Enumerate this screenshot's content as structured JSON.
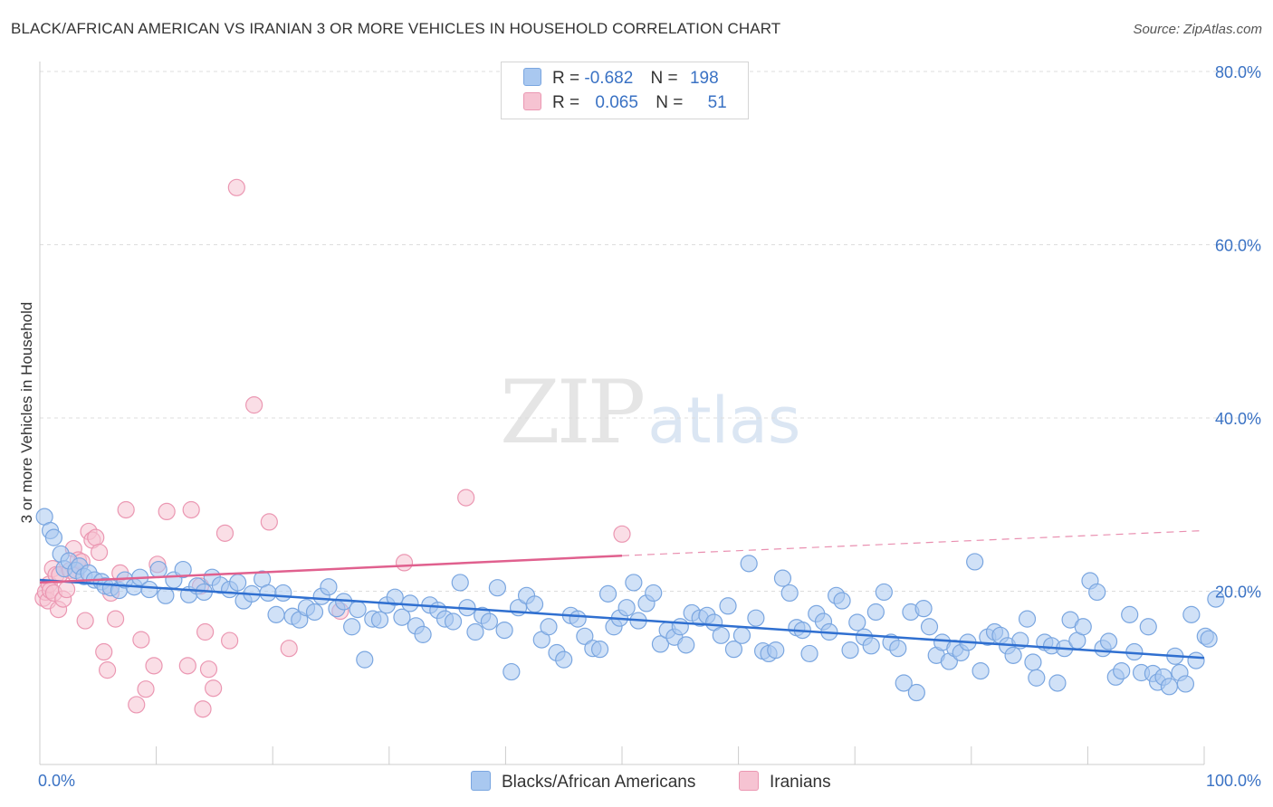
{
  "title": "BLACK/AFRICAN AMERICAN VS IRANIAN 3 OR MORE VEHICLES IN HOUSEHOLD CORRELATION CHART",
  "source": "Source: ZipAtlas.com",
  "watermark": {
    "zip": "ZIP",
    "atlas": "atlas"
  },
  "legend": {
    "rows": [
      {
        "r_label": "R =",
        "r_value": "-0.682",
        "n_label": "N =",
        "n_value": "198"
      },
      {
        "r_label": "R =",
        "r_value": "0.065",
        "n_label": "N =",
        "n_value": "51"
      }
    ]
  },
  "bottom_legend": {
    "series1": "Blacks/African Americans",
    "series2": "Iranians"
  },
  "colors": {
    "blue_fill": "#a9c8f0",
    "blue_stroke": "#7aa6e0",
    "blue_line": "#2f6fd0",
    "pink_fill": "#f6c3d2",
    "pink_stroke": "#eb97b2",
    "pink_line": "#e0608e",
    "axis_text": "#3a72c4",
    "grid": "#dddddd"
  },
  "chart_data": {
    "type": "scatter",
    "ylabel": "3 or more Vehicles in Household",
    "xlim": [
      0,
      100
    ],
    "ylim": [
      0,
      85
    ],
    "x_tick_labels": [
      "0.0%",
      "100.0%"
    ],
    "y_ticks": [
      20,
      40,
      60,
      80
    ],
    "y_tick_labels": [
      "20.0%",
      "40.0%",
      "60.0%",
      "80.0%"
    ],
    "grid": true,
    "series": [
      {
        "name": "Blacks/African Americans",
        "r": -0.682,
        "n": 198,
        "trend": {
          "x": [
            0,
            100
          ],
          "y": [
            21.3,
            12.3
          ],
          "style": "solid"
        },
        "points": [
          [
            0.4,
            28.6
          ],
          [
            0.9,
            27
          ],
          [
            1.2,
            26.2
          ],
          [
            1.8,
            24.3
          ],
          [
            2.1,
            22.6
          ],
          [
            2.5,
            23.5
          ],
          [
            3.1,
            22.4
          ],
          [
            3.4,
            22.9
          ],
          [
            3.8,
            21.7
          ],
          [
            4.2,
            22.1
          ],
          [
            4.7,
            21.3
          ],
          [
            5.3,
            21.1
          ],
          [
            5.6,
            20.6
          ],
          [
            6.1,
            20.4
          ],
          [
            6.8,
            20.1
          ],
          [
            7.3,
            21.3
          ],
          [
            8.1,
            20.5
          ],
          [
            8.6,
            21.6
          ],
          [
            9.4,
            20.2
          ],
          [
            10.2,
            22.5
          ],
          [
            10.8,
            19.5
          ],
          [
            11.5,
            21.3
          ],
          [
            12.3,
            22.5
          ],
          [
            12.8,
            19.6
          ],
          [
            13.5,
            20.6
          ],
          [
            14.1,
            19.9
          ],
          [
            14.8,
            21.6
          ],
          [
            15.5,
            20.7
          ],
          [
            16.3,
            20.2
          ],
          [
            17,
            21
          ],
          [
            17.5,
            18.9
          ],
          [
            18.2,
            19.7
          ],
          [
            19.1,
            21.4
          ],
          [
            19.6,
            19.8
          ],
          [
            20.3,
            17.3
          ],
          [
            20.9,
            19.8
          ],
          [
            21.7,
            17.1
          ],
          [
            22.3,
            16.7
          ],
          [
            22.9,
            18.1
          ],
          [
            23.6,
            17.6
          ],
          [
            24.2,
            19.4
          ],
          [
            24.8,
            20.5
          ],
          [
            25.5,
            18
          ],
          [
            26.1,
            18.8
          ],
          [
            26.8,
            15.9
          ],
          [
            27.3,
            17.9
          ],
          [
            27.9,
            12.1
          ],
          [
            28.6,
            16.8
          ],
          [
            29.2,
            16.7
          ],
          [
            29.8,
            18.4
          ],
          [
            30.5,
            19.3
          ],
          [
            31.1,
            17
          ],
          [
            31.8,
            18.6
          ],
          [
            32.3,
            16
          ],
          [
            32.9,
            15
          ],
          [
            33.5,
            18.4
          ],
          [
            34.2,
            17.8
          ],
          [
            34.8,
            16.8
          ],
          [
            35.5,
            16.5
          ],
          [
            36.1,
            21
          ],
          [
            36.7,
            18.1
          ],
          [
            37.4,
            15.3
          ],
          [
            38,
            17.2
          ],
          [
            38.6,
            16.5
          ],
          [
            39.3,
            20.4
          ],
          [
            39.9,
            15.5
          ],
          [
            40.5,
            10.7
          ],
          [
            41.1,
            18.1
          ],
          [
            41.8,
            19.5
          ],
          [
            42.5,
            18.5
          ],
          [
            43.1,
            14.4
          ],
          [
            43.7,
            15.9
          ],
          [
            44.4,
            12.9
          ],
          [
            45,
            12.1
          ],
          [
            45.6,
            17.2
          ],
          [
            46.2,
            16.8
          ],
          [
            46.8,
            14.8
          ],
          [
            47.5,
            13.4
          ],
          [
            48.1,
            13.3
          ],
          [
            48.8,
            19.7
          ],
          [
            49.3,
            15.9
          ],
          [
            49.8,
            16.9
          ],
          [
            50.4,
            18.1
          ],
          [
            51,
            21
          ],
          [
            51.4,
            16.6
          ],
          [
            52.1,
            18.6
          ],
          [
            52.7,
            19.8
          ],
          [
            53.3,
            13.9
          ],
          [
            53.9,
            15.5
          ],
          [
            54.5,
            14.7
          ],
          [
            55,
            15.9
          ],
          [
            55.5,
            13.8
          ],
          [
            56,
            17.5
          ],
          [
            56.7,
            16.9
          ],
          [
            57.3,
            17.2
          ],
          [
            57.9,
            16.4
          ],
          [
            58.5,
            14.9
          ],
          [
            59.1,
            18.3
          ],
          [
            59.6,
            13.3
          ],
          [
            60.3,
            14.9
          ],
          [
            60.9,
            23.2
          ],
          [
            61.5,
            16.9
          ],
          [
            62.1,
            13.1
          ],
          [
            62.6,
            12.8
          ],
          [
            63.2,
            13.2
          ],
          [
            63.8,
            21.5
          ],
          [
            64.4,
            19.8
          ],
          [
            65,
            15.8
          ],
          [
            65.5,
            15.5
          ],
          [
            66.1,
            12.8
          ],
          [
            66.7,
            17.4
          ],
          [
            67.3,
            16.5
          ],
          [
            67.8,
            15.3
          ],
          [
            68.4,
            19.5
          ],
          [
            68.9,
            18.9
          ],
          [
            69.6,
            13.2
          ],
          [
            70.2,
            16.4
          ],
          [
            70.8,
            14.7
          ],
          [
            71.4,
            13.7
          ],
          [
            71.8,
            17.6
          ],
          [
            72.5,
            19.9
          ],
          [
            73.1,
            14.1
          ],
          [
            73.7,
            13.4
          ],
          [
            74.2,
            9.4
          ],
          [
            74.8,
            17.6
          ],
          [
            75.3,
            8.3
          ],
          [
            75.9,
            18
          ],
          [
            76.4,
            15.9
          ],
          [
            77,
            12.6
          ],
          [
            77.5,
            14.1
          ],
          [
            78.1,
            11.9
          ],
          [
            78.6,
            13.4
          ],
          [
            79.1,
            12.9
          ],
          [
            79.7,
            14.1
          ],
          [
            80.3,
            23.4
          ],
          [
            80.8,
            10.8
          ],
          [
            81.4,
            14.7
          ],
          [
            82,
            15.3
          ],
          [
            82.5,
            14.9
          ],
          [
            83.1,
            13.7
          ],
          [
            83.6,
            12.6
          ],
          [
            84.2,
            14.3
          ],
          [
            84.8,
            16.8
          ],
          [
            85.3,
            11.8
          ],
          [
            85.6,
            10
          ],
          [
            86.3,
            14.1
          ],
          [
            86.9,
            13.7
          ],
          [
            87.4,
            9.4
          ],
          [
            88,
            13.4
          ],
          [
            88.5,
            16.7
          ],
          [
            89.1,
            14.3
          ],
          [
            89.6,
            15.9
          ],
          [
            90.2,
            21.2
          ],
          [
            90.8,
            19.9
          ],
          [
            91.3,
            13.4
          ],
          [
            91.8,
            14.2
          ],
          [
            92.4,
            10.1
          ],
          [
            92.9,
            10.8
          ],
          [
            93.6,
            17.3
          ],
          [
            94,
            13
          ],
          [
            94.6,
            10.6
          ],
          [
            95.2,
            15.9
          ],
          [
            95.6,
            10.5
          ],
          [
            96,
            9.5
          ],
          [
            96.5,
            10.1
          ],
          [
            97,
            9
          ],
          [
            97.5,
            12.5
          ],
          [
            97.9,
            10.6
          ],
          [
            98.4,
            9.3
          ],
          [
            98.9,
            17.3
          ],
          [
            99.3,
            12
          ],
          [
            100.1,
            14.8
          ],
          [
            100.4,
            14.5
          ],
          [
            101,
            19.1
          ]
        ]
      },
      {
        "name": "Iranians",
        "r": 0.065,
        "n": 51,
        "trend": {
          "x": [
            0,
            50
          ],
          "y": [
            21.0,
            24.1
          ],
          "style": "solid"
        },
        "trend_extension": {
          "x": [
            50,
            100
          ],
          "y": [
            24.1,
            27.0
          ],
          "style": "dashed"
        },
        "points": [
          [
            0.3,
            19.2
          ],
          [
            0.5,
            19.9
          ],
          [
            0.7,
            18.9
          ],
          [
            0.8,
            20.8
          ],
          [
            0.9,
            20.1
          ],
          [
            1.1,
            22.6
          ],
          [
            1.2,
            19.8
          ],
          [
            1.4,
            21.9
          ],
          [
            1.6,
            17.9
          ],
          [
            1.7,
            21.9
          ],
          [
            2,
            19.1
          ],
          [
            2.3,
            20.2
          ],
          [
            2.6,
            22.4
          ],
          [
            2.9,
            24.9
          ],
          [
            3.1,
            21.9
          ],
          [
            3.3,
            23.6
          ],
          [
            3.6,
            23.4
          ],
          [
            3.9,
            16.6
          ],
          [
            4.2,
            26.9
          ],
          [
            4.5,
            25.9
          ],
          [
            4.8,
            26.2
          ],
          [
            5.1,
            24.5
          ],
          [
            5.5,
            13
          ],
          [
            5.8,
            10.9
          ],
          [
            6.1,
            19.8
          ],
          [
            6.5,
            16.8
          ],
          [
            6.9,
            22.1
          ],
          [
            7.4,
            29.4
          ],
          [
            8.3,
            6.9
          ],
          [
            8.7,
            14.4
          ],
          [
            9.1,
            8.7
          ],
          [
            9.8,
            11.4
          ],
          [
            10.1,
            23.1
          ],
          [
            10.9,
            29.2
          ],
          [
            12.7,
            11.4
          ],
          [
            13,
            29.4
          ],
          [
            13.8,
            20.6
          ],
          [
            14,
            6.4
          ],
          [
            14.2,
            15.3
          ],
          [
            14.5,
            11
          ],
          [
            14.9,
            8.8
          ],
          [
            15.9,
            26.7
          ],
          [
            16.3,
            14.3
          ],
          [
            16.9,
            66.6
          ],
          [
            18.4,
            41.5
          ],
          [
            19.7,
            28
          ],
          [
            21.4,
            13.4
          ],
          [
            25.8,
            17.7
          ],
          [
            31.3,
            23.3
          ],
          [
            36.6,
            30.8
          ],
          [
            50,
            26.6
          ]
        ]
      }
    ]
  }
}
